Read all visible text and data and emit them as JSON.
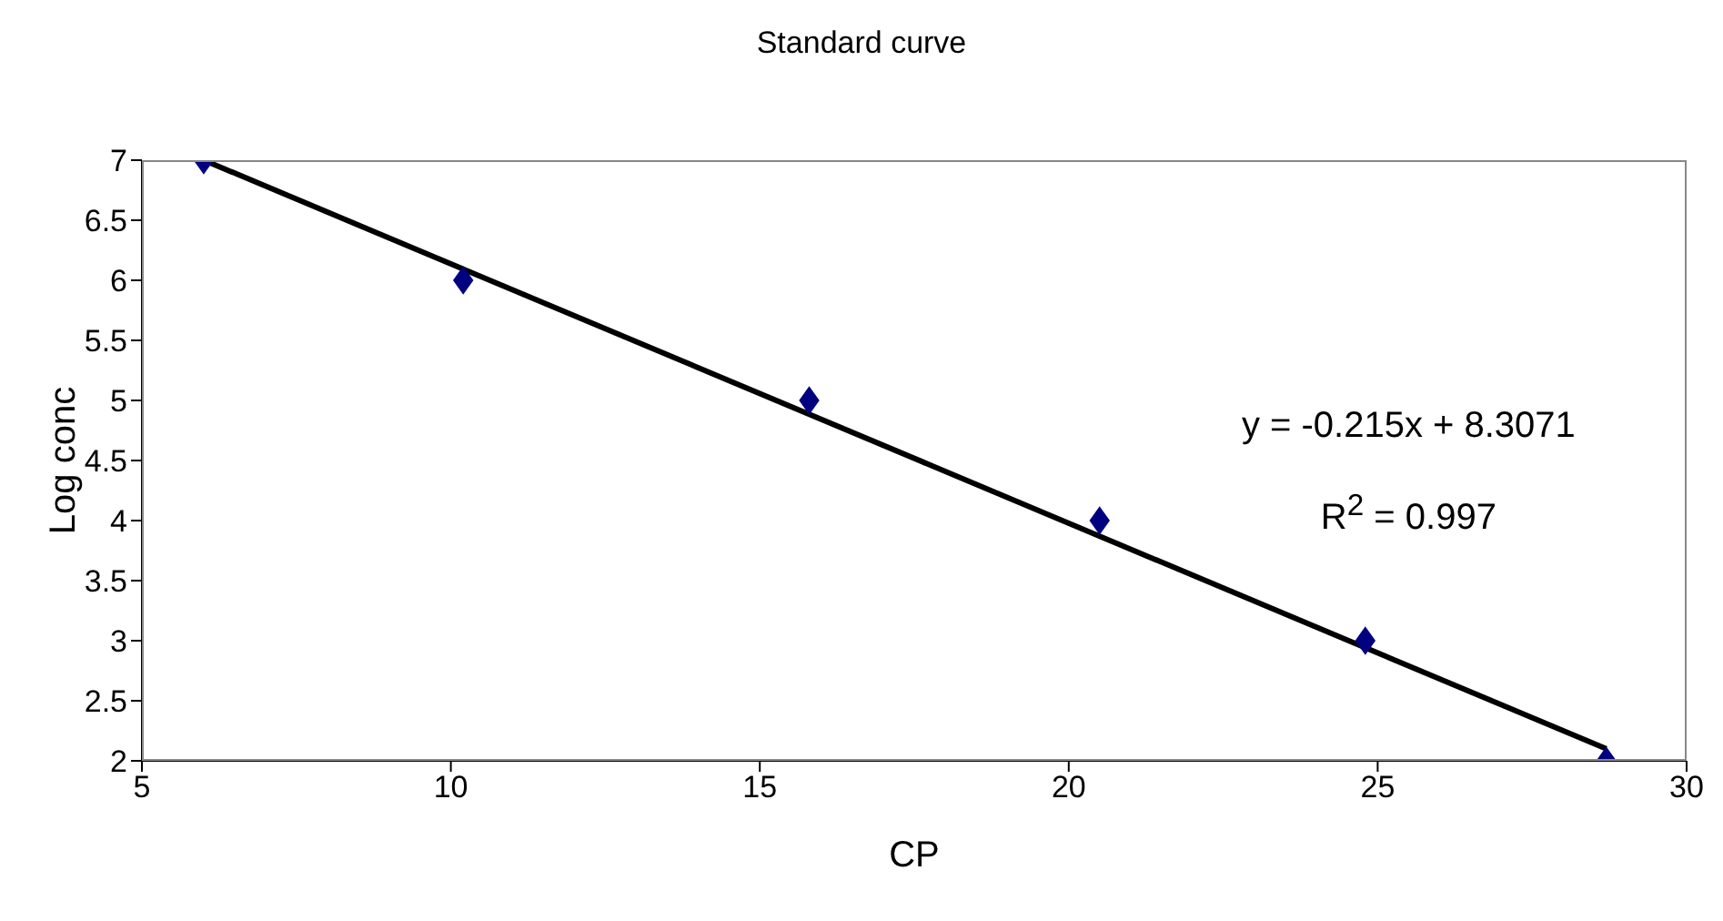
{
  "chart_data": {
    "type": "scatter",
    "title": "Standard curve",
    "xlabel": "CP",
    "ylabel": "Log conc",
    "x": [
      6.0,
      10.2,
      15.8,
      20.5,
      24.8,
      28.7
    ],
    "series": [
      {
        "color": "#000080",
        "values": [
          7,
          6,
          5,
          4,
          3,
          2
        ],
        "marker": "diamond"
      },
      {
        "type": "line",
        "color": "#000000",
        "x": [
          6.0,
          28.7
        ],
        "values": [
          7.0,
          2.1
        ],
        "marker": "none"
      }
    ],
    "xlim": [
      5,
      30
    ],
    "xticks": [
      5,
      10,
      15,
      20,
      25,
      30
    ],
    "ylim": [
      2,
      7
    ],
    "yticks": [
      2,
      2.5,
      3,
      3.5,
      4,
      4.5,
      5,
      5.5,
      6,
      6.5,
      7
    ],
    "annotations": [
      "y = -0.215x + 8.3071",
      "R$^{2}$ = 0.997"
    ],
    "grid": false
  }
}
